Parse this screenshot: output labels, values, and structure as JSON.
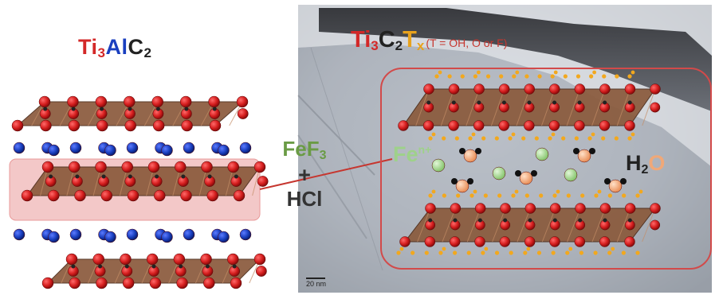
{
  "left_title": {
    "ti": "Ti",
    "ti_sub": "3",
    "al": "Al",
    "c": "C",
    "c_sub": "2"
  },
  "reagents": {
    "fef": "FeF",
    "fef_sub": "3",
    "plus": "+",
    "hcl": "HCl"
  },
  "right_title": {
    "ti": "Ti",
    "ti_sub": "3",
    "c": "C",
    "c_sub": "2",
    "t": "T",
    "t_sub": "x",
    "condition": "(T = OH, O or F)"
  },
  "fe_ion_label": {
    "base": "Fe",
    "sup": "n+"
  },
  "water_label": {
    "h": "H",
    "sub": "2",
    "o": "O"
  },
  "scale_bar": "20 nm",
  "colors": {
    "titanium": "#d32828",
    "aluminum": "#1a3fbf",
    "carbon": "#222222",
    "octahedra": "#8a5a3c",
    "iron_ion": "#9ed18a",
    "water_oxygen": "#f0a878",
    "terminal_groups": "#f2a81e",
    "highlight_box": "#f3c8c8",
    "outline": "#d24a4a",
    "fef3": "#6a9b45"
  }
}
